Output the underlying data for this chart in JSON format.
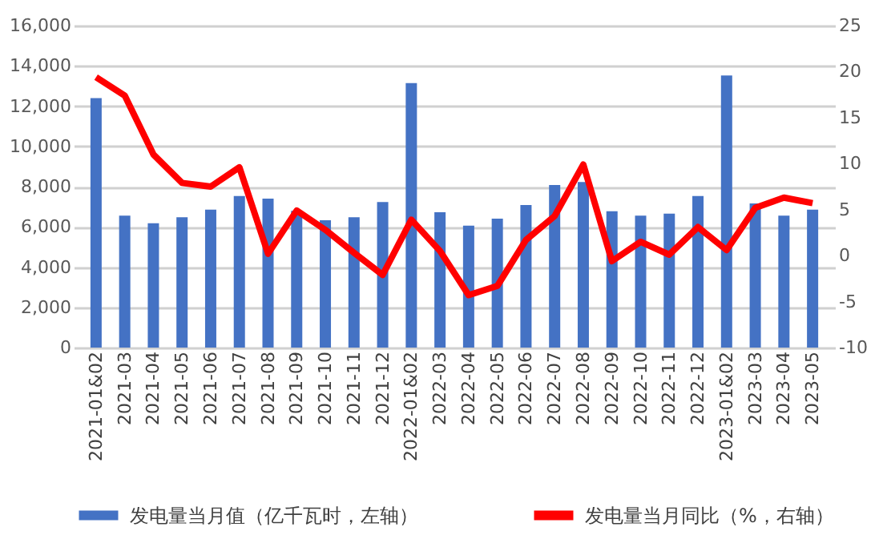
{
  "chart_data": {
    "type": "bar",
    "categories": [
      "2021-01&02",
      "2021-03",
      "2021-04",
      "2021-05",
      "2021-06",
      "2021-07",
      "2021-08",
      "2021-09",
      "2021-10",
      "2021-11",
      "2021-12",
      "2022-01&02",
      "2022-03",
      "2022-04",
      "2022-05",
      "2022-06",
      "2022-07",
      "2022-08",
      "2022-09",
      "2022-10",
      "2022-11",
      "2022-12",
      "2023-01&02",
      "2023-03",
      "2023-04",
      "2023-05"
    ],
    "series": [
      {
        "name": "发电量当月值（亿千瓦时，左轴）",
        "color": "#4472c4",
        "values": [
          12400,
          6560,
          6180,
          6480,
          6860,
          7530,
          7400,
          6800,
          6330,
          6480,
          7230,
          13140,
          6730,
          6060,
          6410,
          7080,
          8080,
          8230,
          6780,
          6560,
          6660,
          7530,
          13520,
          7160,
          6560,
          6860
        ]
      },
      {
        "name": "发电量当月同比（%，右轴）",
        "type": "line",
        "axis": "y2",
        "color": "#ff0000",
        "values": [
          19.4,
          17.4,
          11.0,
          7.9,
          7.5,
          9.6,
          0.2,
          4.9,
          2.8,
          0.3,
          -2.1,
          3.9,
          0.5,
          -4.3,
          -3.3,
          1.7,
          4.3,
          9.9,
          -0.6,
          1.5,
          0.1,
          3.1,
          0.6,
          5.2,
          6.3,
          5.7
        ]
      }
    ],
    "ylim": [
      0,
      16000
    ],
    "yticks": [
      0,
      {
        "value": 2000,
        "label": "2,000"
      },
      {
        "value": 4000,
        "label": "4,000"
      },
      {
        "value": 6000,
        "label": "6,000"
      },
      {
        "value": 8000,
        "label": "8,000"
      },
      {
        "value": 10000,
        "label": "10,000"
      },
      {
        "value": 12000,
        "label": "12,000"
      },
      {
        "value": 14000,
        "label": "14,000"
      },
      {
        "value": 16000,
        "label": "16,000"
      }
    ],
    "y2lim": [
      -10,
      25
    ],
    "y2ticks": [
      -10,
      -5,
      0,
      5,
      10,
      15,
      20,
      25
    ],
    "grid": "y",
    "legend": "bottom"
  }
}
